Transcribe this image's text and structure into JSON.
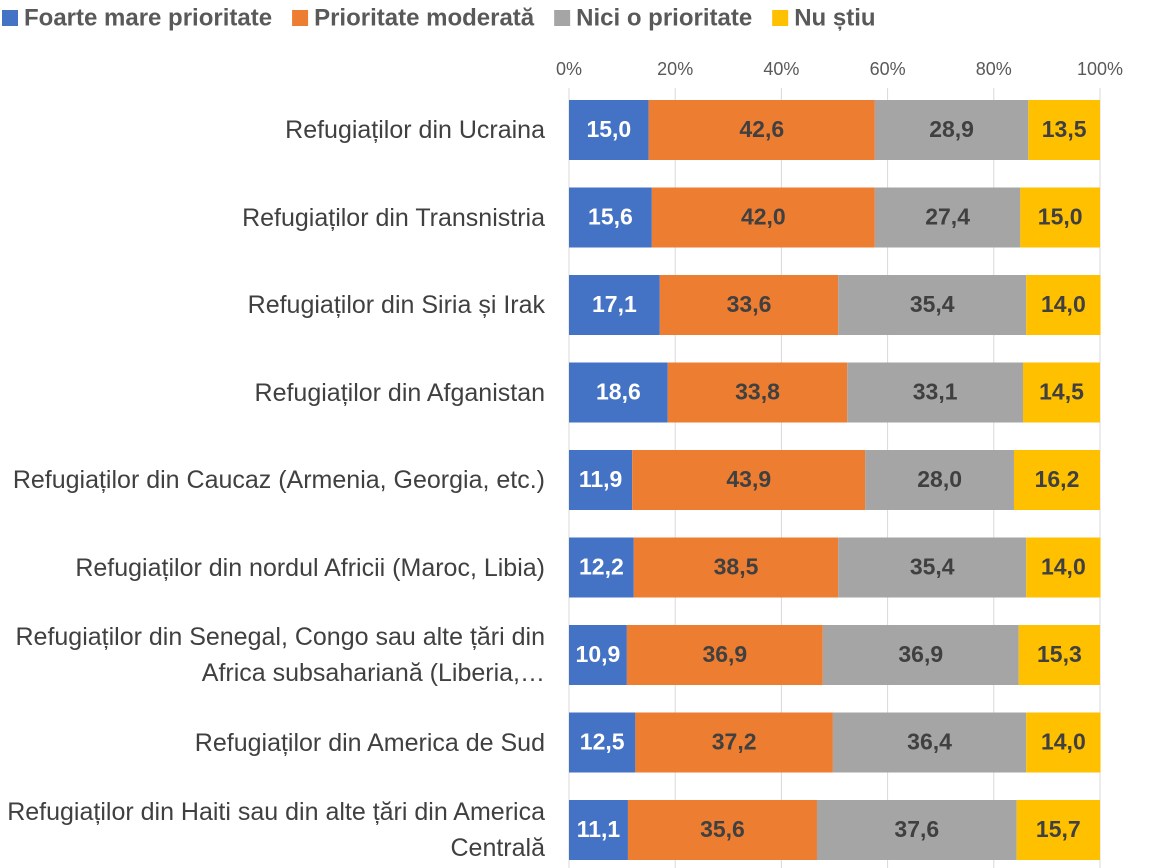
{
  "chart_data": {
    "type": "stacked_barh",
    "categories": [
      "Refugiaților din Ucraina",
      "Refugiaților din Transnistria",
      "Refugiaților din Siria și Irak",
      "Refugiaților din Afganistan",
      "Refugiaților din Caucaz (Armenia, Georgia, etc.)",
      "Refugiaților din nordul Africii (Maroc, Libia)",
      "Refugiaților din Senegal, Congo sau alte țări din Africa subsahariană (Liberia,…",
      "Refugiaților din America de Sud",
      "Refugiaților din Haiti sau din alte țări din America Centrală"
    ],
    "series": [
      {
        "name": "Foarte mare prioritate",
        "color": "#4472c4",
        "values": [
          15.0,
          15.6,
          17.1,
          18.6,
          11.9,
          12.2,
          10.9,
          12.5,
          11.1
        ],
        "value_labels": [
          "15,0",
          "15,6",
          "17,1",
          "18,6",
          "11,9",
          "12,2",
          "10,9",
          "12,5",
          "11,1"
        ]
      },
      {
        "name": "Prioritate moderată",
        "color": "#ed7d31",
        "values": [
          42.6,
          42.0,
          33.6,
          33.8,
          43.9,
          38.5,
          36.9,
          37.2,
          35.6
        ],
        "value_labels": [
          "42,6",
          "42,0",
          "33,6",
          "33,8",
          "43,9",
          "38,5",
          "36,9",
          "37,2",
          "35,6"
        ]
      },
      {
        "name": "Nici o prioritate",
        "color": "#a5a5a5",
        "values": [
          28.9,
          27.4,
          35.4,
          33.1,
          28.0,
          35.4,
          36.9,
          36.4,
          37.6
        ],
        "value_labels": [
          "28,9",
          "27,4",
          "35,4",
          "33,1",
          "28,0",
          "35,4",
          "36,9",
          "36,4",
          "37,6"
        ]
      },
      {
        "name": "Nu știu",
        "color": "#ffc000",
        "values": [
          13.5,
          15.0,
          14.0,
          14.5,
          16.2,
          14.0,
          15.3,
          14.0,
          15.7
        ],
        "value_labels": [
          "13,5",
          "15,0",
          "14,0",
          "14,5",
          "16,2",
          "14,0",
          "15,3",
          "14,0",
          "15,7"
        ]
      }
    ],
    "xlim": [
      0,
      100
    ],
    "xticks": [
      {
        "value": 0,
        "label": "0%"
      },
      {
        "value": 20,
        "label": "20%"
      },
      {
        "value": 40,
        "label": "40%"
      },
      {
        "value": 60,
        "label": "60%"
      },
      {
        "value": 80,
        "label": "80%"
      },
      {
        "value": 100,
        "label": "100%"
      }
    ],
    "grid": true,
    "legend": "top"
  }
}
